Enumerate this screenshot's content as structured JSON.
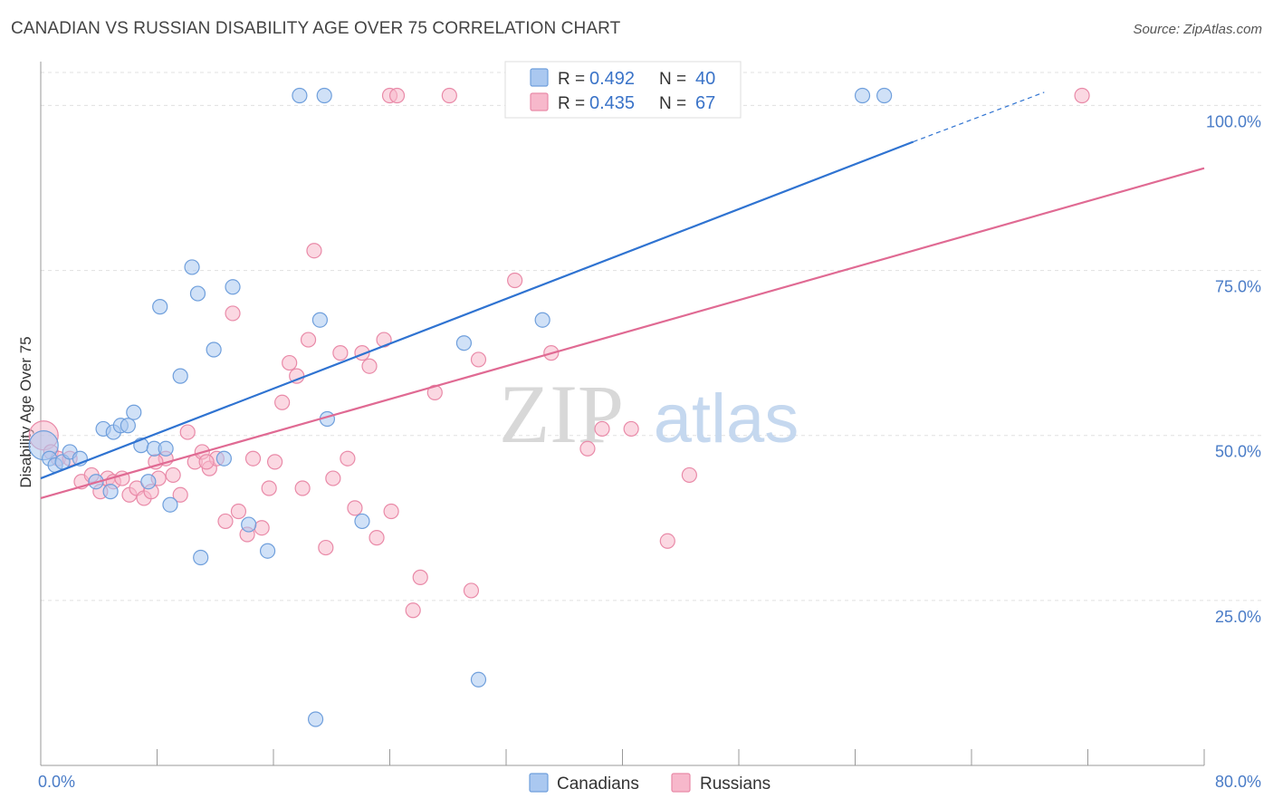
{
  "title": "CANADIAN VS RUSSIAN DISABILITY AGE OVER 75 CORRELATION CHART",
  "source": "Source: ZipAtlas.com",
  "watermark": {
    "zip": "ZIP",
    "atlas": "atlas"
  },
  "colors": {
    "canadians_fill": "#aac8f0",
    "canadians_stroke": "#6f9fdc",
    "canadians_line": "#2f73d1",
    "russians_fill": "#f7b8cb",
    "russians_stroke": "#e98aa8",
    "russians_line": "#e06a93",
    "tick_text": "#4a7cc7",
    "grid": "#e0e0e0"
  },
  "legend": {
    "r_label": "R =",
    "n_label": "N =",
    "rows": [
      {
        "r": "0.492",
        "n": "40"
      },
      {
        "r": "0.435",
        "n": "67"
      }
    ]
  },
  "chart_data": {
    "type": "scatter",
    "title": "CANADIAN VS RUSSIAN DISABILITY AGE OVER 75 CORRELATION CHART",
    "xlabel": "",
    "ylabel": "Disability Age Over 75",
    "xlim": [
      0,
      80
    ],
    "ylim": [
      0,
      105
    ],
    "x_tick_labels": [
      "0.0%",
      "80.0%"
    ],
    "y_ticks": [
      25,
      50,
      75,
      100
    ],
    "y_tick_labels": [
      "25.0%",
      "50.0%",
      "75.0%",
      "100.0%"
    ],
    "grid": "horizontal dashed",
    "legend_position": "top-center",
    "series": [
      {
        "name": "Canadians",
        "points": [
          [
            0.2,
            48.5
          ],
          [
            0.6,
            46.5
          ],
          [
            1.0,
            45.5
          ],
          [
            1.5,
            46
          ],
          [
            2.0,
            47.5
          ],
          [
            2.7,
            46.5
          ],
          [
            3.8,
            43
          ],
          [
            4.3,
            51
          ],
          [
            4.8,
            41.5
          ],
          [
            5.0,
            50.5
          ],
          [
            5.5,
            51.5
          ],
          [
            6.0,
            51.5
          ],
          [
            6.4,
            53.5
          ],
          [
            6.9,
            48.5
          ],
          [
            7.4,
            43
          ],
          [
            7.8,
            48
          ],
          [
            8.2,
            69.5
          ],
          [
            8.6,
            48
          ],
          [
            8.9,
            39.5
          ],
          [
            9.6,
            59
          ],
          [
            10.4,
            75.5
          ],
          [
            10.8,
            71.5
          ],
          [
            11.0,
            31.5
          ],
          [
            11.9,
            63
          ],
          [
            12.6,
            46.5
          ],
          [
            13.2,
            72.5
          ],
          [
            14.3,
            36.5
          ],
          [
            15.6,
            32.5
          ],
          [
            19.2,
            67.5
          ],
          [
            19.7,
            52.5
          ],
          [
            22.1,
            37
          ],
          [
            29.1,
            64
          ],
          [
            30.1,
            13
          ],
          [
            34.5,
            67.5
          ],
          [
            17.8,
            101.5
          ],
          [
            19.5,
            101.5
          ],
          [
            56.5,
            101.5
          ],
          [
            58.0,
            101.5
          ],
          [
            33.9,
            101.5
          ],
          [
            18.9,
            7
          ]
        ],
        "trend": {
          "x": [
            0,
            60
          ],
          "y": [
            43.5,
            94.5
          ]
        },
        "trend_extension": {
          "x": [
            60,
            69
          ],
          "y": [
            94.5,
            102
          ]
        }
      },
      {
        "name": "Russians",
        "points": [
          [
            0.2,
            50
          ],
          [
            0.7,
            47.5
          ],
          [
            1.2,
            46.5
          ],
          [
            2.0,
            46.5
          ],
          [
            2.8,
            43
          ],
          [
            3.5,
            44
          ],
          [
            4.1,
            41.5
          ],
          [
            4.6,
            43.5
          ],
          [
            5.0,
            43
          ],
          [
            5.6,
            43.5
          ],
          [
            6.1,
            41
          ],
          [
            6.6,
            42
          ],
          [
            7.1,
            40.5
          ],
          [
            7.6,
            41.5
          ],
          [
            8.1,
            43.5
          ],
          [
            8.6,
            46.5
          ],
          [
            9.1,
            44
          ],
          [
            9.6,
            41
          ],
          [
            10.1,
            50.5
          ],
          [
            10.6,
            46
          ],
          [
            11.1,
            47.5
          ],
          [
            11.6,
            45
          ],
          [
            12.1,
            46.5
          ],
          [
            12.7,
            37
          ],
          [
            13.2,
            68.5
          ],
          [
            13.6,
            38.5
          ],
          [
            14.2,
            35
          ],
          [
            14.6,
            46.5
          ],
          [
            15.2,
            36
          ],
          [
            15.7,
            42
          ],
          [
            16.1,
            46
          ],
          [
            16.6,
            55
          ],
          [
            17.1,
            61
          ],
          [
            17.6,
            59
          ],
          [
            18.0,
            42
          ],
          [
            18.4,
            64.5
          ],
          [
            18.8,
            78
          ],
          [
            19.6,
            33
          ],
          [
            20.1,
            43.5
          ],
          [
            20.6,
            62.5
          ],
          [
            21.1,
            46.5
          ],
          [
            21.6,
            39
          ],
          [
            22.1,
            62.5
          ],
          [
            22.6,
            60.5
          ],
          [
            23.1,
            34.5
          ],
          [
            23.6,
            64.5
          ],
          [
            24.1,
            38.5
          ],
          [
            25.6,
            23.5
          ],
          [
            26.1,
            28.5
          ],
          [
            27.1,
            56.5
          ],
          [
            28.1,
            101.5
          ],
          [
            29.6,
            26.5
          ],
          [
            30.1,
            61.5
          ],
          [
            32.6,
            73.5
          ],
          [
            35.1,
            62.5
          ],
          [
            36.1,
            101.5
          ],
          [
            37.6,
            48
          ],
          [
            38.6,
            51
          ],
          [
            40.6,
            51
          ],
          [
            43.1,
            34
          ],
          [
            44.6,
            44
          ],
          [
            71.6,
            101.5
          ],
          [
            24.0,
            101.5
          ],
          [
            24.5,
            101.5
          ],
          [
            35.2,
            101.5
          ],
          [
            11.4,
            46
          ],
          [
            7.9,
            46
          ]
        ],
        "trend": {
          "x": [
            0,
            80
          ],
          "y": [
            40.5,
            90.5
          ]
        }
      }
    ]
  },
  "bottom_legend": [
    {
      "label": "Canadians"
    },
    {
      "label": "Russians"
    }
  ]
}
